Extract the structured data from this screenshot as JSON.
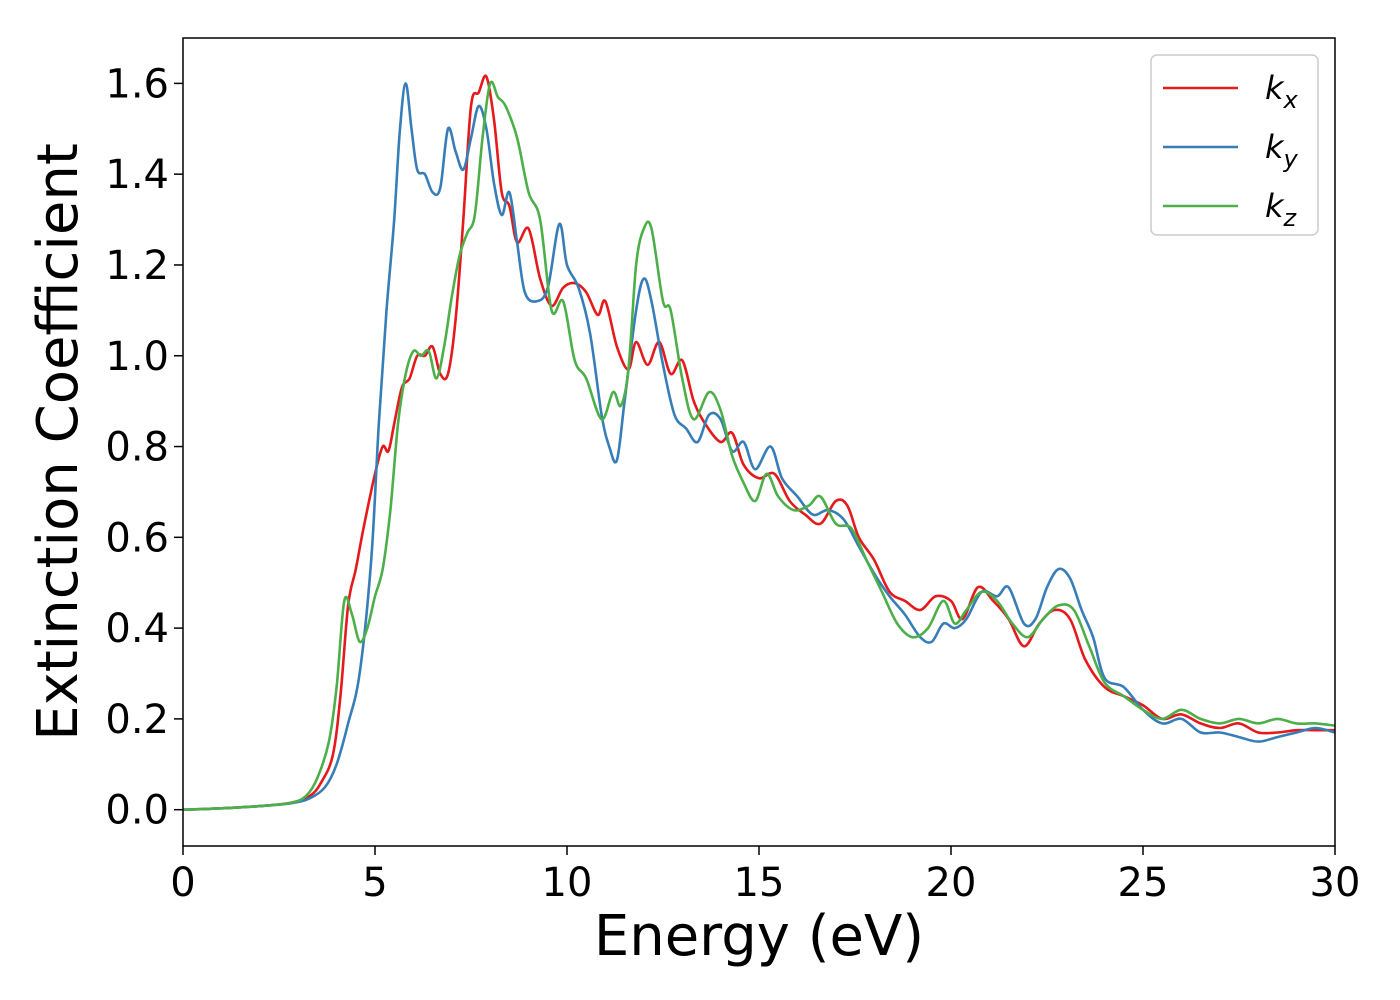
{
  "chart_data": {
    "type": "line",
    "xlabel": "Energy (eV)",
    "ylabel": "Extinction Coefficient",
    "xlim": [
      0,
      30
    ],
    "ylim": [
      -0.08,
      1.7
    ],
    "xticks": [
      0,
      5,
      10,
      15,
      20,
      25,
      30
    ],
    "yticks": [
      0.0,
      0.2,
      0.4,
      0.6,
      0.8,
      1.0,
      1.2,
      1.4,
      1.6
    ],
    "grid": false,
    "legend_position": "top-right",
    "series": [
      {
        "name": "k",
        "subscript": "x",
        "color": "#e41a1c",
        "points": [
          [
            0,
            0.0
          ],
          [
            1,
            0.003
          ],
          [
            2,
            0.008
          ],
          [
            2.8,
            0.015
          ],
          [
            3.3,
            0.03
          ],
          [
            3.6,
            0.06
          ],
          [
            3.9,
            0.12
          ],
          [
            4.1,
            0.25
          ],
          [
            4.3,
            0.45
          ],
          [
            4.5,
            0.53
          ],
          [
            4.7,
            0.62
          ],
          [
            5.0,
            0.74
          ],
          [
            5.2,
            0.8
          ],
          [
            5.35,
            0.79
          ],
          [
            5.5,
            0.85
          ],
          [
            5.7,
            0.93
          ],
          [
            5.9,
            0.95
          ],
          [
            6.1,
            1.0
          ],
          [
            6.3,
            1.0
          ],
          [
            6.5,
            1.02
          ],
          [
            6.7,
            0.96
          ],
          [
            6.9,
            0.96
          ],
          [
            7.1,
            1.08
          ],
          [
            7.3,
            1.3
          ],
          [
            7.5,
            1.55
          ],
          [
            7.7,
            1.58
          ],
          [
            7.9,
            1.615
          ],
          [
            8.1,
            1.52
          ],
          [
            8.3,
            1.36
          ],
          [
            8.5,
            1.33
          ],
          [
            8.7,
            1.25
          ],
          [
            9.0,
            1.28
          ],
          [
            9.3,
            1.17
          ],
          [
            9.6,
            1.11
          ],
          [
            9.9,
            1.15
          ],
          [
            10.2,
            1.16
          ],
          [
            10.5,
            1.14
          ],
          [
            10.8,
            1.09
          ],
          [
            11.0,
            1.12
          ],
          [
            11.3,
            1.02
          ],
          [
            11.6,
            0.97
          ],
          [
            11.8,
            1.03
          ],
          [
            12.1,
            0.98
          ],
          [
            12.4,
            1.03
          ],
          [
            12.7,
            0.96
          ],
          [
            13.0,
            0.99
          ],
          [
            13.3,
            0.9
          ],
          [
            13.6,
            0.85
          ],
          [
            14.0,
            0.81
          ],
          [
            14.3,
            0.83
          ],
          [
            14.6,
            0.76
          ],
          [
            15.0,
            0.73
          ],
          [
            15.4,
            0.74
          ],
          [
            15.8,
            0.68
          ],
          [
            16.2,
            0.65
          ],
          [
            16.6,
            0.63
          ],
          [
            17.0,
            0.68
          ],
          [
            17.3,
            0.67
          ],
          [
            17.6,
            0.6
          ],
          [
            18.0,
            0.55
          ],
          [
            18.4,
            0.48
          ],
          [
            18.8,
            0.46
          ],
          [
            19.2,
            0.44
          ],
          [
            19.6,
            0.47
          ],
          [
            20.0,
            0.46
          ],
          [
            20.3,
            0.42
          ],
          [
            20.7,
            0.49
          ],
          [
            21.1,
            0.46
          ],
          [
            21.5,
            0.42
          ],
          [
            21.9,
            0.36
          ],
          [
            22.3,
            0.41
          ],
          [
            22.7,
            0.44
          ],
          [
            23.1,
            0.42
          ],
          [
            23.5,
            0.33
          ],
          [
            24.0,
            0.27
          ],
          [
            24.5,
            0.25
          ],
          [
            25.0,
            0.23
          ],
          [
            25.5,
            0.2
          ],
          [
            26.0,
            0.21
          ],
          [
            26.5,
            0.19
          ],
          [
            27.0,
            0.18
          ],
          [
            27.5,
            0.19
          ],
          [
            28.0,
            0.17
          ],
          [
            28.5,
            0.17
          ],
          [
            29.0,
            0.175
          ],
          [
            29.5,
            0.175
          ],
          [
            30,
            0.175
          ]
        ]
      },
      {
        "name": "k",
        "subscript": "y",
        "color": "#377eb8",
        "points": [
          [
            0,
            0.0
          ],
          [
            1,
            0.003
          ],
          [
            2,
            0.008
          ],
          [
            2.8,
            0.014
          ],
          [
            3.3,
            0.025
          ],
          [
            3.7,
            0.05
          ],
          [
            4.0,
            0.1
          ],
          [
            4.3,
            0.19
          ],
          [
            4.6,
            0.3
          ],
          [
            4.9,
            0.55
          ],
          [
            5.1,
            0.85
          ],
          [
            5.3,
            1.1
          ],
          [
            5.5,
            1.3
          ],
          [
            5.65,
            1.5
          ],
          [
            5.8,
            1.6
          ],
          [
            5.95,
            1.5
          ],
          [
            6.1,
            1.41
          ],
          [
            6.3,
            1.4
          ],
          [
            6.5,
            1.36
          ],
          [
            6.7,
            1.37
          ],
          [
            6.9,
            1.5
          ],
          [
            7.1,
            1.45
          ],
          [
            7.3,
            1.41
          ],
          [
            7.5,
            1.48
          ],
          [
            7.7,
            1.55
          ],
          [
            7.9,
            1.5
          ],
          [
            8.1,
            1.38
          ],
          [
            8.3,
            1.31
          ],
          [
            8.5,
            1.36
          ],
          [
            8.7,
            1.25
          ],
          [
            8.9,
            1.14
          ],
          [
            9.2,
            1.12
          ],
          [
            9.5,
            1.15
          ],
          [
            9.8,
            1.29
          ],
          [
            10.0,
            1.2
          ],
          [
            10.3,
            1.15
          ],
          [
            10.6,
            1.05
          ],
          [
            10.9,
            0.87
          ],
          [
            11.1,
            0.8
          ],
          [
            11.3,
            0.77
          ],
          [
            11.5,
            0.9
          ],
          [
            11.8,
            1.1
          ],
          [
            12.0,
            1.17
          ],
          [
            12.2,
            1.12
          ],
          [
            12.5,
            0.98
          ],
          [
            12.8,
            0.87
          ],
          [
            13.1,
            0.84
          ],
          [
            13.4,
            0.81
          ],
          [
            13.7,
            0.87
          ],
          [
            14.0,
            0.86
          ],
          [
            14.3,
            0.79
          ],
          [
            14.6,
            0.81
          ],
          [
            14.9,
            0.75
          ],
          [
            15.3,
            0.8
          ],
          [
            15.6,
            0.73
          ],
          [
            16.0,
            0.69
          ],
          [
            16.4,
            0.65
          ],
          [
            16.8,
            0.66
          ],
          [
            17.2,
            0.64
          ],
          [
            17.6,
            0.58
          ],
          [
            18.0,
            0.52
          ],
          [
            18.4,
            0.47
          ],
          [
            18.8,
            0.43
          ],
          [
            19.2,
            0.38
          ],
          [
            19.5,
            0.37
          ],
          [
            19.8,
            0.41
          ],
          [
            20.1,
            0.4
          ],
          [
            20.4,
            0.42
          ],
          [
            20.8,
            0.48
          ],
          [
            21.2,
            0.47
          ],
          [
            21.5,
            0.49
          ],
          [
            21.9,
            0.41
          ],
          [
            22.2,
            0.42
          ],
          [
            22.5,
            0.49
          ],
          [
            22.8,
            0.53
          ],
          [
            23.1,
            0.51
          ],
          [
            23.4,
            0.44
          ],
          [
            23.7,
            0.38
          ],
          [
            24.0,
            0.29
          ],
          [
            24.5,
            0.27
          ],
          [
            25.0,
            0.22
          ],
          [
            25.5,
            0.19
          ],
          [
            26.0,
            0.2
          ],
          [
            26.5,
            0.17
          ],
          [
            27.0,
            0.17
          ],
          [
            27.5,
            0.16
          ],
          [
            28.0,
            0.15
          ],
          [
            28.5,
            0.16
          ],
          [
            29.0,
            0.17
          ],
          [
            29.5,
            0.18
          ],
          [
            30,
            0.17
          ]
        ]
      },
      {
        "name": "k",
        "subscript": "z",
        "color": "#4daf4a",
        "points": [
          [
            0,
            0.0
          ],
          [
            1,
            0.003
          ],
          [
            2,
            0.008
          ],
          [
            2.8,
            0.015
          ],
          [
            3.2,
            0.03
          ],
          [
            3.5,
            0.07
          ],
          [
            3.8,
            0.15
          ],
          [
            4.0,
            0.27
          ],
          [
            4.2,
            0.46
          ],
          [
            4.4,
            0.43
          ],
          [
            4.6,
            0.37
          ],
          [
            4.8,
            0.4
          ],
          [
            5.0,
            0.47
          ],
          [
            5.2,
            0.53
          ],
          [
            5.4,
            0.66
          ],
          [
            5.6,
            0.85
          ],
          [
            5.8,
            0.96
          ],
          [
            6.0,
            1.01
          ],
          [
            6.2,
            1.0
          ],
          [
            6.4,
            1.01
          ],
          [
            6.6,
            0.95
          ],
          [
            6.8,
            1.02
          ],
          [
            7.0,
            1.13
          ],
          [
            7.2,
            1.22
          ],
          [
            7.4,
            1.27
          ],
          [
            7.6,
            1.31
          ],
          [
            7.8,
            1.48
          ],
          [
            8.0,
            1.6
          ],
          [
            8.2,
            1.57
          ],
          [
            8.4,
            1.55
          ],
          [
            8.7,
            1.48
          ],
          [
            9.0,
            1.36
          ],
          [
            9.3,
            1.3
          ],
          [
            9.6,
            1.1
          ],
          [
            9.9,
            1.12
          ],
          [
            10.2,
            0.99
          ],
          [
            10.5,
            0.95
          ],
          [
            10.9,
            0.86
          ],
          [
            11.2,
            0.92
          ],
          [
            11.4,
            0.89
          ],
          [
            11.6,
            0.97
          ],
          [
            11.8,
            1.2
          ],
          [
            12.0,
            1.28
          ],
          [
            12.2,
            1.28
          ],
          [
            12.5,
            1.12
          ],
          [
            12.7,
            1.1
          ],
          [
            13.0,
            0.95
          ],
          [
            13.3,
            0.86
          ],
          [
            13.7,
            0.92
          ],
          [
            14.0,
            0.88
          ],
          [
            14.3,
            0.78
          ],
          [
            14.6,
            0.72
          ],
          [
            14.9,
            0.68
          ],
          [
            15.2,
            0.74
          ],
          [
            15.5,
            0.69
          ],
          [
            15.9,
            0.66
          ],
          [
            16.3,
            0.67
          ],
          [
            16.6,
            0.69
          ],
          [
            17.0,
            0.63
          ],
          [
            17.4,
            0.62
          ],
          [
            17.8,
            0.55
          ],
          [
            18.2,
            0.48
          ],
          [
            18.6,
            0.41
          ],
          [
            19.0,
            0.38
          ],
          [
            19.4,
            0.4
          ],
          [
            19.8,
            0.46
          ],
          [
            20.1,
            0.41
          ],
          [
            20.4,
            0.44
          ],
          [
            20.8,
            0.48
          ],
          [
            21.2,
            0.46
          ],
          [
            21.6,
            0.41
          ],
          [
            22.0,
            0.38
          ],
          [
            22.4,
            0.42
          ],
          [
            22.8,
            0.45
          ],
          [
            23.2,
            0.44
          ],
          [
            23.6,
            0.36
          ],
          [
            24.0,
            0.28
          ],
          [
            24.5,
            0.25
          ],
          [
            25.0,
            0.22
          ],
          [
            25.5,
            0.2
          ],
          [
            26.0,
            0.22
          ],
          [
            26.5,
            0.2
          ],
          [
            27.0,
            0.19
          ],
          [
            27.5,
            0.2
          ],
          [
            28.0,
            0.19
          ],
          [
            28.5,
            0.2
          ],
          [
            29.0,
            0.19
          ],
          [
            29.5,
            0.19
          ],
          [
            30,
            0.185
          ]
        ]
      }
    ]
  }
}
